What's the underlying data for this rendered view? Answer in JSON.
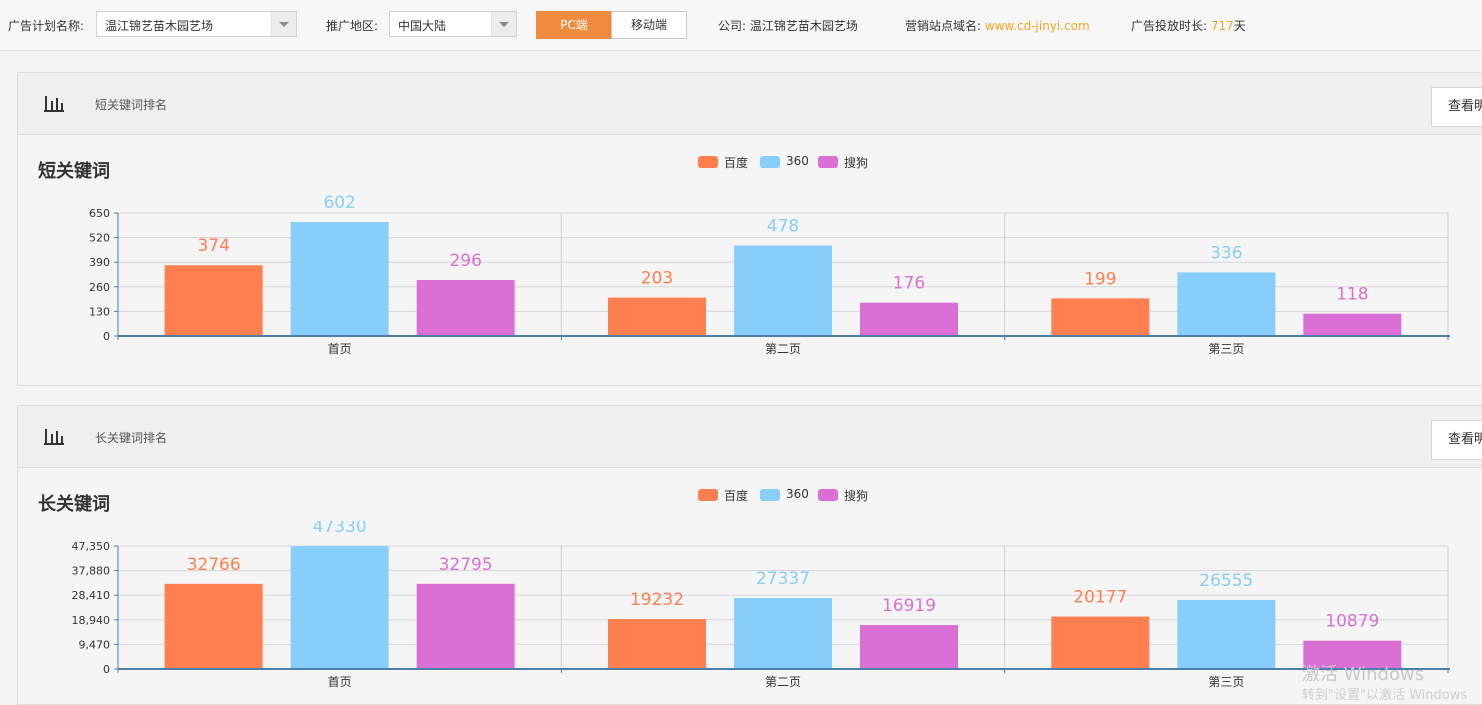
{
  "filters": {
    "plan_label": "广告计划名称:",
    "plan_value": "温江锦艺苗木园艺场",
    "region_label": "推广地区:",
    "region_value": "中国大陆",
    "pc_label": "PC端",
    "mobile_label": "移动端",
    "company_label": "公司: ",
    "company_value": "温江锦艺苗木园艺场",
    "domain_label": "营销站点域名: ",
    "domain_value": "www.cd-jinyi.com",
    "duration_label": "广告投放时长: ",
    "duration_value": "717",
    "duration_unit": "天"
  },
  "panels": [
    {
      "header_title": "短关键词排名",
      "view_button": "查看明",
      "legend": [
        "百度",
        "360",
        "搜狗"
      ]
    },
    {
      "header_title": "长关键词排名",
      "view_button": "查看明",
      "legend": [
        "百度",
        "360",
        "搜狗"
      ]
    }
  ],
  "colors": {
    "baidu": "#ff7f50",
    "s360": "#87cefa",
    "sogou": "#da70d6",
    "accent": "#f08a3c"
  },
  "icons": {
    "panel_icon": "bar-chart-icon"
  },
  "watermark": {
    "line1": "激活 Windows",
    "line2": "转到\"设置\"以激活 Windows"
  },
  "chart_data": [
    {
      "type": "bar",
      "title": "短关键词",
      "categories": [
        "首页",
        "第二页",
        "第三页"
      ],
      "series": [
        {
          "name": "百度",
          "values": [
            374,
            203,
            199
          ]
        },
        {
          "name": "360",
          "values": [
            602,
            478,
            336
          ]
        },
        {
          "name": "搜狗",
          "values": [
            296,
            176,
            118
          ]
        }
      ],
      "yticks": [
        "0",
        "130",
        "260",
        "390",
        "520",
        "650"
      ],
      "ylim": [
        0,
        650
      ],
      "grid": true,
      "legend": "top-center"
    },
    {
      "type": "bar",
      "title": "长关键词",
      "categories": [
        "首页",
        "第二页",
        "第三页"
      ],
      "series": [
        {
          "name": "百度",
          "values": [
            32766,
            19232,
            20177
          ]
        },
        {
          "name": "360",
          "values": [
            47330,
            27337,
            26555
          ]
        },
        {
          "name": "搜狗",
          "values": [
            32795,
            16919,
            10879
          ]
        }
      ],
      "yticks": [
        "0",
        "9,470",
        "18,940",
        "28,410",
        "37,880",
        "47,350"
      ],
      "ylim": [
        0,
        47350
      ],
      "grid": true,
      "legend": "top-center"
    }
  ]
}
